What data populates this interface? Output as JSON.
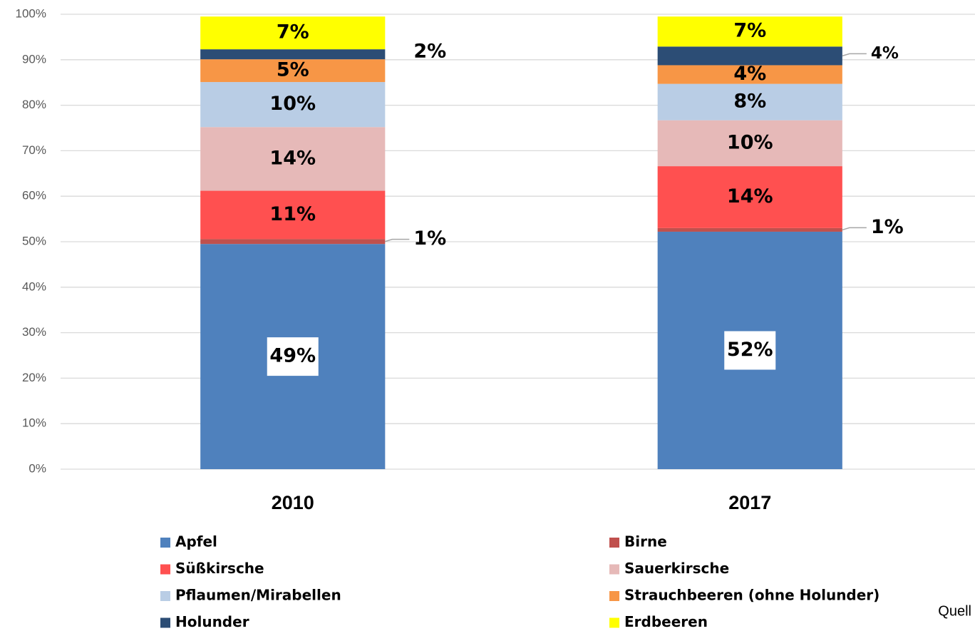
{
  "chart_data": {
    "type": "stacked_bar",
    "categories": [
      "2010",
      "2017"
    ],
    "series": [
      {
        "name": "Apfel",
        "color": "#4f81bd",
        "values": [
          49.5,
          52.2
        ],
        "value_labels": [
          "49%",
          "52%"
        ]
      },
      {
        "name": "Birne",
        "color": "#c0504d",
        "values": [
          1.1,
          0.8
        ],
        "value_labels": [
          "1%",
          "1%"
        ]
      },
      {
        "name": "Süßkirsche",
        "color": "#ff5050",
        "values": [
          10.6,
          13.6
        ],
        "value_labels": [
          "11%",
          "14%"
        ]
      },
      {
        "name": "Sauerkirsche",
        "color": "#e6b9b8",
        "values": [
          14.0,
          10.1
        ],
        "value_labels": [
          "14%",
          "10%"
        ]
      },
      {
        "name": "Pflaumen/Mirabellen",
        "color": "#b9cde5",
        "values": [
          9.9,
          8.0
        ],
        "value_labels": [
          "10%",
          "8%"
        ]
      },
      {
        "name": "Strauchbeeren (ohne Holunder)",
        "color": "#f79646",
        "values": [
          5.0,
          4.1
        ],
        "value_labels": [
          "5%",
          "4%"
        ]
      },
      {
        "name": "Holunder",
        "color": "#2c4d75",
        "values": [
          2.2,
          4.1
        ],
        "value_labels": [
          "2%",
          "4%"
        ]
      },
      {
        "name": "Erdbeeren",
        "color": "#ffff00",
        "values": [
          7.2,
          6.6
        ],
        "value_labels": [
          "7%",
          "7%"
        ]
      }
    ],
    "ylim": [
      0,
      100
    ],
    "yticks": [
      {
        "value": 0,
        "label": "0%"
      },
      {
        "value": 10,
        "label": "10%"
      },
      {
        "value": 20,
        "label": "20%"
      },
      {
        "value": 30,
        "label": "30%"
      },
      {
        "value": 40,
        "label": "40%"
      },
      {
        "value": 50,
        "label": "50%"
      },
      {
        "value": 60,
        "label": "60%"
      },
      {
        "value": 70,
        "label": "70%"
      },
      {
        "value": 80,
        "label": "80%"
      },
      {
        "value": 90,
        "label": "90%"
      },
      {
        "value": 100,
        "label": "100%"
      }
    ],
    "grid": true,
    "legend": "bottom",
    "source": "Quell"
  }
}
